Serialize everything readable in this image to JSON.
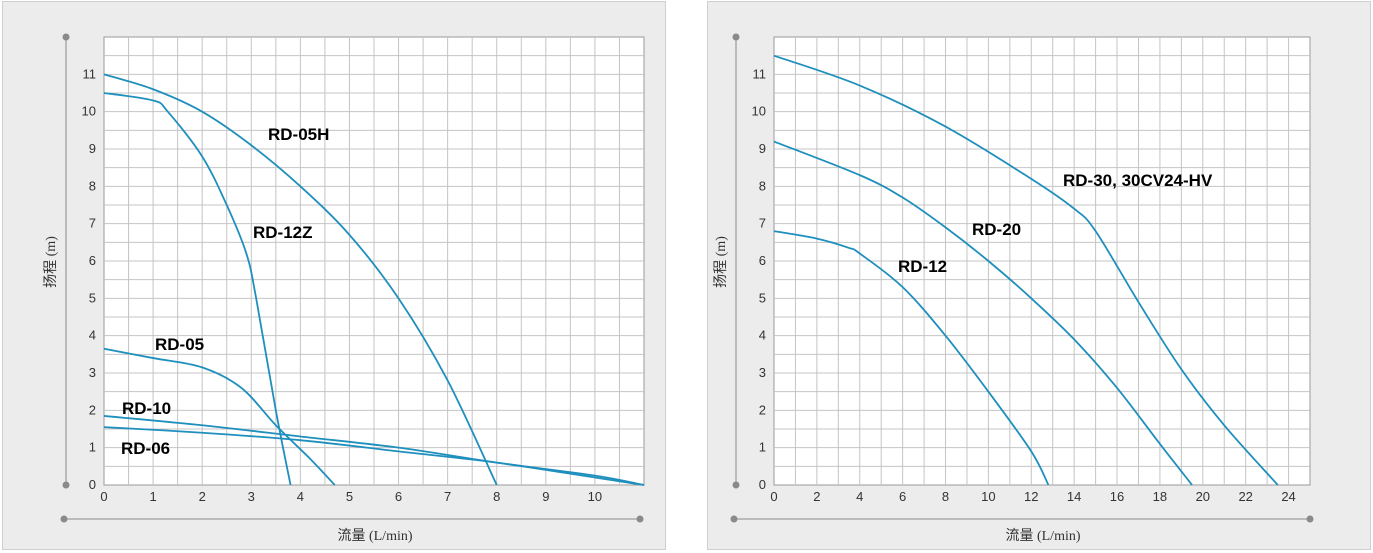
{
  "chart_data": [
    {
      "type": "line",
      "xlabel": "流量 (L/min)",
      "ylabel": "扬程 (m)",
      "xlim": [
        0,
        11
      ],
      "ylim": [
        0,
        12
      ],
      "x_ticks": [
        0,
        1,
        2,
        3,
        4,
        5,
        6,
        7,
        8,
        9,
        10
      ],
      "y_ticks": [
        0,
        1,
        2,
        3,
        4,
        5,
        6,
        7,
        8,
        9,
        10,
        11
      ],
      "grid": true,
      "line_color": "#1f8fbd",
      "series": [
        {
          "name": "RD-05H",
          "x": [
            0,
            1,
            2,
            3,
            4,
            5,
            6,
            7,
            8
          ],
          "y": [
            11.0,
            10.6,
            10.0,
            9.1,
            8.0,
            6.7,
            5.0,
            2.8,
            0
          ]
        },
        {
          "name": "RD-12Z",
          "x": [
            0,
            1,
            1.3,
            2,
            2.5,
            2.9,
            3.1,
            3.5,
            3.8
          ],
          "y": [
            10.5,
            10.3,
            10.0,
            8.8,
            7.5,
            6.2,
            5.0,
            2.0,
            0
          ]
        },
        {
          "name": "RD-05",
          "x": [
            0,
            1,
            2,
            2.8,
            3.5,
            4.2,
            4.7
          ],
          "y": [
            3.65,
            3.4,
            3.15,
            2.6,
            1.6,
            0.7,
            0
          ]
        },
        {
          "name": "RD-10",
          "x": [
            0,
            2,
            4,
            6,
            8,
            10,
            11
          ],
          "y": [
            1.85,
            1.6,
            1.3,
            1.0,
            0.6,
            0.25,
            0
          ]
        },
        {
          "name": "RD-06",
          "x": [
            0,
            2,
            4,
            6,
            8,
            10,
            11
          ],
          "y": [
            1.55,
            1.4,
            1.2,
            0.9,
            0.6,
            0.2,
            0
          ]
        }
      ]
    },
    {
      "type": "line",
      "xlabel": "流量 (L/min)",
      "ylabel": "扬程 (m)",
      "xlim": [
        0,
        25
      ],
      "ylim": [
        0,
        12
      ],
      "x_ticks": [
        0,
        2,
        4,
        6,
        8,
        10,
        12,
        14,
        16,
        18,
        20,
        22,
        24
      ],
      "y_ticks": [
        0,
        1,
        2,
        3,
        4,
        5,
        6,
        7,
        8,
        9,
        10,
        11
      ],
      "grid": true,
      "line_color": "#1f8fbd",
      "series": [
        {
          "name": "RD-30, 30CV24-HV",
          "x": [
            0,
            4,
            8,
            12,
            14,
            15,
            17,
            19,
            21,
            23.5
          ],
          "y": [
            11.5,
            10.7,
            9.6,
            8.2,
            7.4,
            6.8,
            4.9,
            3.1,
            1.6,
            0
          ]
        },
        {
          "name": "RD-20",
          "x": [
            0,
            4,
            6,
            8,
            10,
            12,
            14,
            16,
            18,
            19.5
          ],
          "y": [
            9.2,
            8.3,
            7.7,
            6.9,
            6.0,
            5.0,
            3.9,
            2.6,
            1.1,
            0
          ]
        },
        {
          "name": "RD-12",
          "x": [
            0,
            2,
            3.5,
            4,
            6,
            8,
            10,
            12,
            12.8
          ],
          "y": [
            6.8,
            6.6,
            6.35,
            6.2,
            5.3,
            4.0,
            2.5,
            0.9,
            0
          ]
        }
      ]
    }
  ]
}
